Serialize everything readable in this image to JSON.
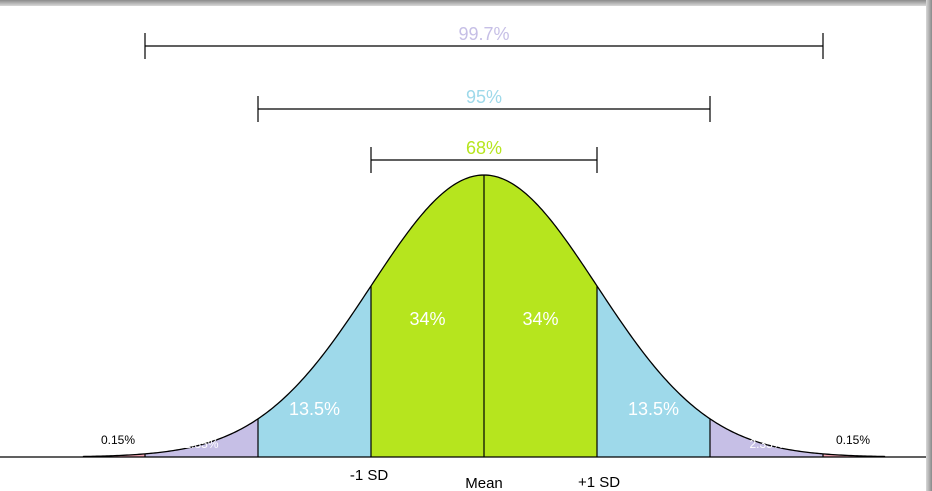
{
  "chart_data": {
    "type": "area",
    "title": "",
    "xlabel": "",
    "ylabel": "",
    "xlim": [
      -3.55,
      3.55
    ],
    "x_tick_labels": [
      {
        "x": -1,
        "label": "-1 SD"
      },
      {
        "x": 0,
        "label": "Mean"
      },
      {
        "x": 1,
        "label": "+1 SD"
      }
    ],
    "regions": [
      {
        "from": -3.55,
        "to": -3,
        "label": "0.15%",
        "color": "#f4a6b4",
        "label_color": "#000000"
      },
      {
        "from": -3,
        "to": -2,
        "label": "2.35%",
        "color": "#c6bfe6",
        "label_color": "#ffffff"
      },
      {
        "from": -2,
        "to": -1,
        "label": "13.5%",
        "color": "#9ed9ea",
        "label_color": "#ffffff"
      },
      {
        "from": -1,
        "to": 0,
        "label": "34%",
        "color": "#b6e51e",
        "label_color": "#ffffff"
      },
      {
        "from": 0,
        "to": 1,
        "label": "34%",
        "color": "#b6e51e",
        "label_color": "#ffffff"
      },
      {
        "from": 1,
        "to": 2,
        "label": "13.5%",
        "color": "#9ed9ea",
        "label_color": "#ffffff"
      },
      {
        "from": 2,
        "to": 3,
        "label": "2.35%",
        "color": "#c6bfe6",
        "label_color": "#ffffff"
      },
      {
        "from": 3,
        "to": 3.55,
        "label": "0.15%",
        "color": "#f4a6b4",
        "label_color": "#000000"
      }
    ],
    "ranges": [
      {
        "from": -3,
        "to": 3,
        "label": "99.7%",
        "color": "#c6bfe6"
      },
      {
        "from": -2,
        "to": 2,
        "label": "95%",
        "color": "#9ed9ea"
      },
      {
        "from": -1,
        "to": 1,
        "label": "68%",
        "color": "#b6e51e"
      }
    ],
    "grid": false,
    "legend": "none"
  }
}
